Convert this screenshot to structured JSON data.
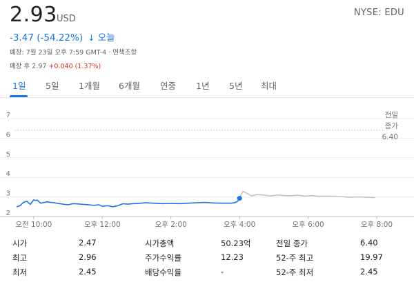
{
  "header": {
    "price": "2.93",
    "currency": "USD",
    "ticker": "NYSE: EDU",
    "change": "-3.47 (-54.22%)",
    "change_arrow": "↓",
    "change_period": "오늘",
    "close_info": "폐장: 7월 23일 오후 7:59 GMT-4",
    "disclaimer_sep": " · ",
    "disclaimer": "면책조항",
    "after_hours_label": "폐장 후",
    "after_hours_price": "2.97",
    "after_hours_change": "+0.040 (1.37%)",
    "colors": {
      "accent": "#1a73e8",
      "negative": "#1a73e8",
      "positive": "#d93025"
    }
  },
  "tabs": [
    {
      "label": "1일",
      "active": true
    },
    {
      "label": "5일"
    },
    {
      "label": "1개월"
    },
    {
      "label": "6개월"
    },
    {
      "label": "연중"
    },
    {
      "label": "1년"
    },
    {
      "label": "5년"
    },
    {
      "label": "최대"
    }
  ],
  "chart_data": {
    "type": "line",
    "ylim": [
      2,
      7
    ],
    "yticks": [
      "2",
      "3",
      "4",
      "5",
      "6",
      "7"
    ],
    "xtick_labels": [
      "오전 10:00",
      "오후 12:00",
      "오후 2:00",
      "오후 4:00",
      "오후 6:00",
      "오후 8:00"
    ],
    "xtick_hours": [
      10,
      12,
      14,
      16,
      18,
      20
    ],
    "xlim_hours": [
      9.5,
      20
    ],
    "prev_close": 6.4,
    "prev_close_label": [
      "전일",
      "종가",
      "6.40"
    ],
    "series": [
      {
        "session": "regular",
        "color": "#1a73e8",
        "hours": [
          9.5,
          9.6,
          9.7,
          9.8,
          9.9,
          10.0,
          10.05,
          10.1,
          10.2,
          10.3,
          10.4,
          10.5,
          10.6,
          10.75,
          10.9,
          11.0,
          11.15,
          11.3,
          11.45,
          11.6,
          11.75,
          11.9,
          12.0,
          12.15,
          12.3,
          12.45,
          12.6,
          12.75,
          12.9,
          13.0,
          13.25,
          13.5,
          13.75,
          14.0,
          14.25,
          14.5,
          14.75,
          15.0,
          15.25,
          15.5,
          15.75,
          15.85,
          15.95,
          16.0
        ],
        "values": [
          2.5,
          2.55,
          2.72,
          2.78,
          2.62,
          2.85,
          2.82,
          2.84,
          2.68,
          2.72,
          2.75,
          2.72,
          2.7,
          2.66,
          2.62,
          2.6,
          2.66,
          2.64,
          2.62,
          2.6,
          2.57,
          2.6,
          2.52,
          2.55,
          2.5,
          2.55,
          2.65,
          2.63,
          2.66,
          2.66,
          2.7,
          2.68,
          2.66,
          2.67,
          2.66,
          2.68,
          2.7,
          2.72,
          2.69,
          2.68,
          2.68,
          2.7,
          2.78,
          2.93
        ]
      },
      {
        "session": "after-hours",
        "color": "#c4c4c4",
        "hours": [
          16.0,
          16.1,
          16.2,
          16.35,
          16.5,
          16.7,
          16.9,
          17.1,
          17.3,
          17.5,
          17.7,
          17.9,
          18.1,
          18.3,
          18.6,
          18.9,
          19.2,
          19.5,
          19.75,
          19.95
        ],
        "values": [
          2.93,
          3.28,
          3.2,
          3.05,
          3.12,
          3.1,
          3.05,
          3.1,
          3.07,
          3.06,
          3.09,
          3.04,
          3.07,
          3.03,
          3.04,
          3.02,
          2.99,
          3.0,
          2.98,
          2.97
        ]
      }
    ]
  },
  "stats": [
    [
      {
        "label": "시가",
        "value": "2.47"
      },
      {
        "label": "시가총액",
        "value": "50.23억"
      },
      {
        "label": "전일 종가",
        "value": "6.40"
      }
    ],
    [
      {
        "label": "최고",
        "value": "2.96"
      },
      {
        "label": "주가수익률",
        "value": "12.23"
      },
      {
        "label": "52-주 최고",
        "value": "19.97"
      }
    ],
    [
      {
        "label": "최저",
        "value": "2.45"
      },
      {
        "label": "배당수익률",
        "value": "-"
      },
      {
        "label": "52-주 최저",
        "value": "2.45"
      }
    ]
  ]
}
